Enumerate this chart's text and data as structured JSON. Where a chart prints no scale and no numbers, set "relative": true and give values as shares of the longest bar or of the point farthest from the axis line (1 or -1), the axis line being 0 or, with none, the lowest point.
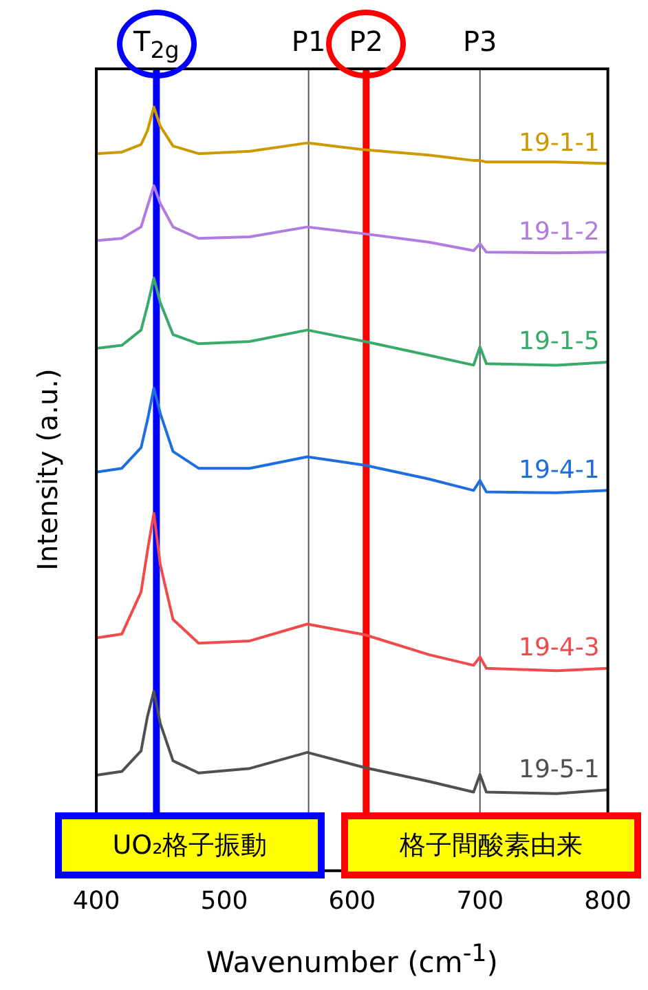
{
  "chart_data": {
    "type": "line",
    "relative": true,
    "xlabel": "Wavenumber (cm$^{-1}$)",
    "ylabel": "Intensity (a.u.)",
    "xlim": [
      400,
      800
    ],
    "xticks": [
      400,
      500,
      600,
      700,
      800
    ],
    "grid": false,
    "legend": false,
    "marker": "none",
    "line_style": "solid",
    "x": [
      400,
      420,
      435,
      440,
      445,
      450,
      460,
      480,
      520,
      565,
      610,
      660,
      695,
      700,
      705,
      760,
      800
    ],
    "series": [
      {
        "name": "19-1-1",
        "color": "#cc9a00",
        "values": [
          0.939,
          0.941,
          0.951,
          0.969,
          1,
          0.975,
          0.949,
          0.939,
          0.942,
          0.953,
          0.944,
          0.937,
          0.93,
          0.93,
          0.928,
          0.928,
          0.926
        ]
      },
      {
        "name": "19-1-2",
        "color": "#b07ce0",
        "values": [
          0.825,
          0.828,
          0.843,
          0.87,
          0.897,
          0.874,
          0.843,
          0.828,
          0.83,
          0.843,
          0.834,
          0.823,
          0.812,
          0.821,
          0.81,
          0.809,
          0.81
        ]
      },
      {
        "name": "19-1-5",
        "color": "#3aaa6a",
        "values": [
          0.684,
          0.688,
          0.708,
          0.74,
          0.776,
          0.744,
          0.702,
          0.69,
          0.693,
          0.708,
          0.693,
          0.675,
          0.662,
          0.686,
          0.664,
          0.662,
          0.666
        ]
      },
      {
        "name": "19-4-1",
        "color": "#1e6ee0",
        "values": [
          0.522,
          0.527,
          0.554,
          0.59,
          0.632,
          0.599,
          0.549,
          0.527,
          0.527,
          0.542,
          0.531,
          0.513,
          0.498,
          0.511,
          0.496,
          0.495,
          0.498
        ]
      },
      {
        "name": "19-4-3",
        "color": "#f04a4a",
        "values": [
          0.305,
          0.31,
          0.365,
          0.419,
          0.468,
          0.401,
          0.329,
          0.298,
          0.301,
          0.323,
          0.309,
          0.283,
          0.269,
          0.28,
          0.265,
          0.262,
          0.265
        ]
      },
      {
        "name": "19-5-1",
        "color": "#505050",
        "values": [
          0.125,
          0.13,
          0.157,
          0.202,
          0.235,
          0.193,
          0.144,
          0.128,
          0.134,
          0.155,
          0.135,
          0.117,
          0.103,
          0.126,
          0.103,
          0.101,
          0.106
        ]
      }
    ],
    "ref_lines": [
      {
        "axis": "x",
        "value": 447,
        "label": "T$_{2g}$",
        "color": "#0000ff"
      },
      {
        "axis": "x",
        "value": 566,
        "label": "P1"
      },
      {
        "axis": "x",
        "value": 611,
        "label": "P2",
        "color": "#ff0000"
      },
      {
        "axis": "x",
        "value": 700,
        "label": "P3"
      }
    ],
    "annotations": [
      "UO₂格子振動",
      "格子間酸素由来"
    ]
  }
}
